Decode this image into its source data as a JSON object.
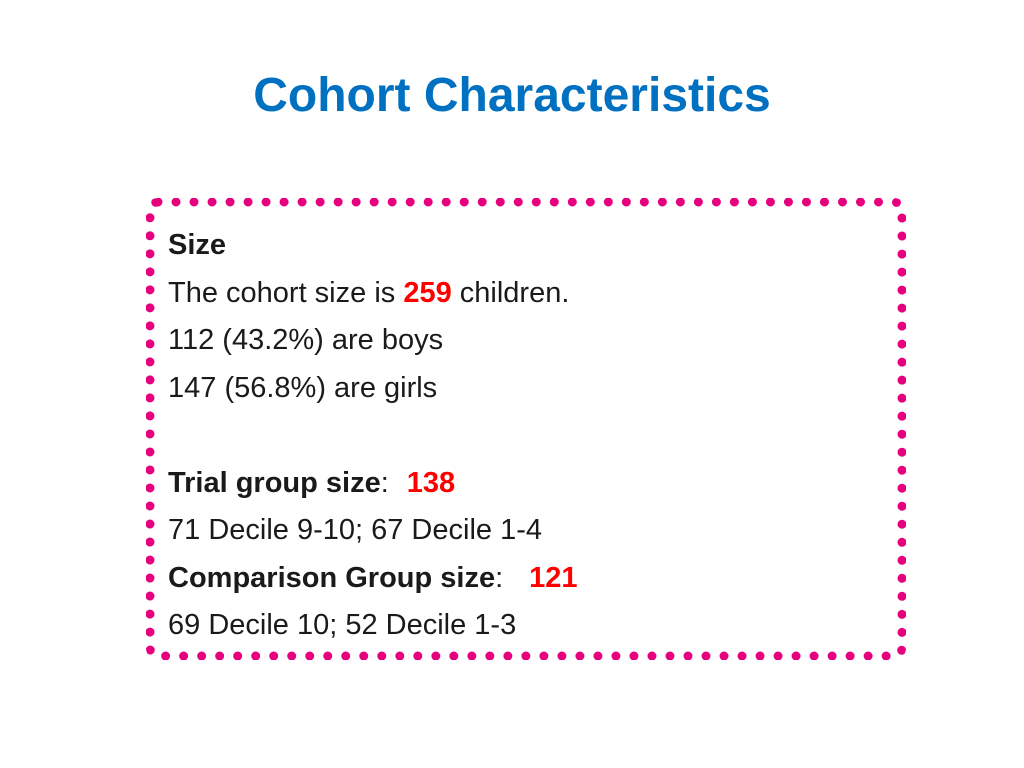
{
  "slide": {
    "title": "Cohort Characteristics",
    "accent_color": "#0070c0",
    "border_color": "#e6007e",
    "highlight_color": "#ff0000"
  },
  "size_section": {
    "heading": "Size",
    "cohort_prefix": "The cohort size is ",
    "cohort_value": "259",
    "cohort_suffix": " children.",
    "boys_line": "112 (43.2%) are boys",
    "girls_line": "147 (56.8%) are girls"
  },
  "trial_group": {
    "label": "Trial group size",
    "separator": ":",
    "value": "138",
    "detail": "71 Decile 9-10; 67 Decile 1-4"
  },
  "comparison_group": {
    "label": "Comparison Group size",
    "separator": ":",
    "value": "121",
    "detail": "69 Decile 10; 52 Decile 1-3"
  }
}
